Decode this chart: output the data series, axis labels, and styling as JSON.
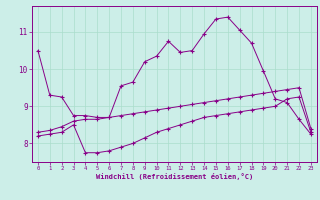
{
  "xlabel": "Windchill (Refroidissement éolien,°C)",
  "bg_color": "#cceee8",
  "grid_color": "#aaddcc",
  "line_color": "#880088",
  "xlim": [
    -0.5,
    23.5
  ],
  "ylim": [
    7.5,
    11.7
  ],
  "xticks": [
    0,
    1,
    2,
    3,
    4,
    5,
    6,
    7,
    8,
    9,
    10,
    11,
    12,
    13,
    14,
    15,
    16,
    17,
    18,
    19,
    20,
    21,
    22,
    23
  ],
  "yticks": [
    8,
    9,
    10,
    11
  ],
  "line1_x": [
    0,
    1,
    2,
    3,
    4,
    5,
    6,
    7,
    8,
    9,
    10,
    11,
    12,
    13,
    14,
    15,
    16,
    17,
    18,
    19,
    20,
    21,
    22,
    23
  ],
  "line1_y": [
    10.5,
    9.3,
    9.25,
    8.75,
    8.75,
    8.7,
    8.7,
    9.55,
    9.65,
    10.2,
    10.35,
    10.75,
    10.45,
    10.5,
    10.95,
    11.35,
    11.4,
    11.05,
    10.7,
    9.95,
    9.2,
    9.1,
    8.65,
    8.25
  ],
  "line2_x": [
    0,
    1,
    2,
    3,
    4,
    5,
    6,
    7,
    8,
    9,
    10,
    11,
    12,
    13,
    14,
    15,
    16,
    17,
    18,
    19,
    20,
    21,
    22,
    23
  ],
  "line2_y": [
    8.2,
    8.25,
    8.3,
    8.5,
    7.75,
    7.75,
    7.8,
    7.9,
    8.0,
    8.15,
    8.3,
    8.4,
    8.5,
    8.6,
    8.7,
    8.75,
    8.8,
    8.85,
    8.9,
    8.95,
    9.0,
    9.2,
    9.25,
    8.3
  ],
  "line3_x": [
    0,
    1,
    2,
    3,
    4,
    5,
    6,
    7,
    8,
    9,
    10,
    11,
    12,
    13,
    14,
    15,
    16,
    17,
    18,
    19,
    20,
    21,
    22,
    23
  ],
  "line3_y": [
    8.3,
    8.35,
    8.45,
    8.6,
    8.65,
    8.65,
    8.7,
    8.75,
    8.8,
    8.85,
    8.9,
    8.95,
    9.0,
    9.05,
    9.1,
    9.15,
    9.2,
    9.25,
    9.3,
    9.35,
    9.4,
    9.45,
    9.5,
    8.4
  ]
}
